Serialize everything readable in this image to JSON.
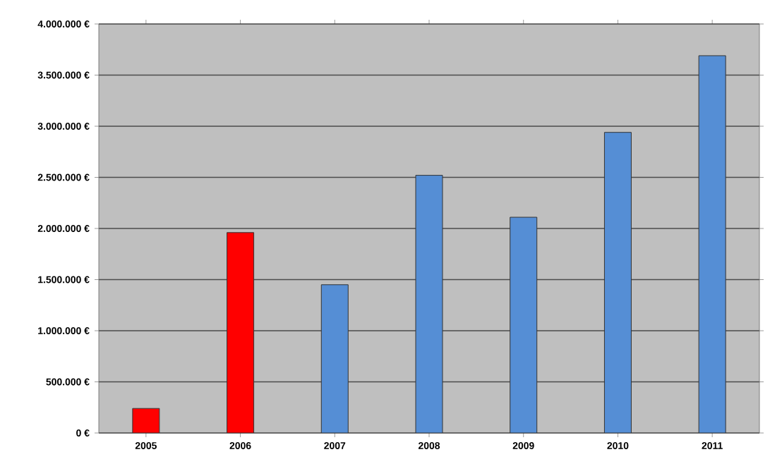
{
  "chart_data": {
    "type": "bar",
    "categories": [
      "2005",
      "2006",
      "2007",
      "2008",
      "2009",
      "2010",
      "2011"
    ],
    "values": [
      240000,
      1960000,
      1450000,
      2520000,
      2110000,
      2940000,
      3690000
    ],
    "colors": [
      "#ff0000",
      "#ff0000",
      "#558ed5",
      "#558ed5",
      "#558ed5",
      "#558ed5",
      "#558ed5"
    ],
    "ylim": [
      0,
      4000000
    ],
    "yticks": [
      {
        "value": 0,
        "label": "0 €"
      },
      {
        "value": 500000,
        "label": "500.000 €"
      },
      {
        "value": 1000000,
        "label": "1.000.000 €"
      },
      {
        "value": 1500000,
        "label": "1.500.000 €"
      },
      {
        "value": 2000000,
        "label": "2.000.000 €"
      },
      {
        "value": 2500000,
        "label": "2.500.000 €"
      },
      {
        "value": 3000000,
        "label": "3.000.000 €"
      },
      {
        "value": 3500000,
        "label": "3.500.000 €"
      },
      {
        "value": 4000000,
        "label": "4.000.000 €"
      }
    ],
    "grid": "y"
  }
}
